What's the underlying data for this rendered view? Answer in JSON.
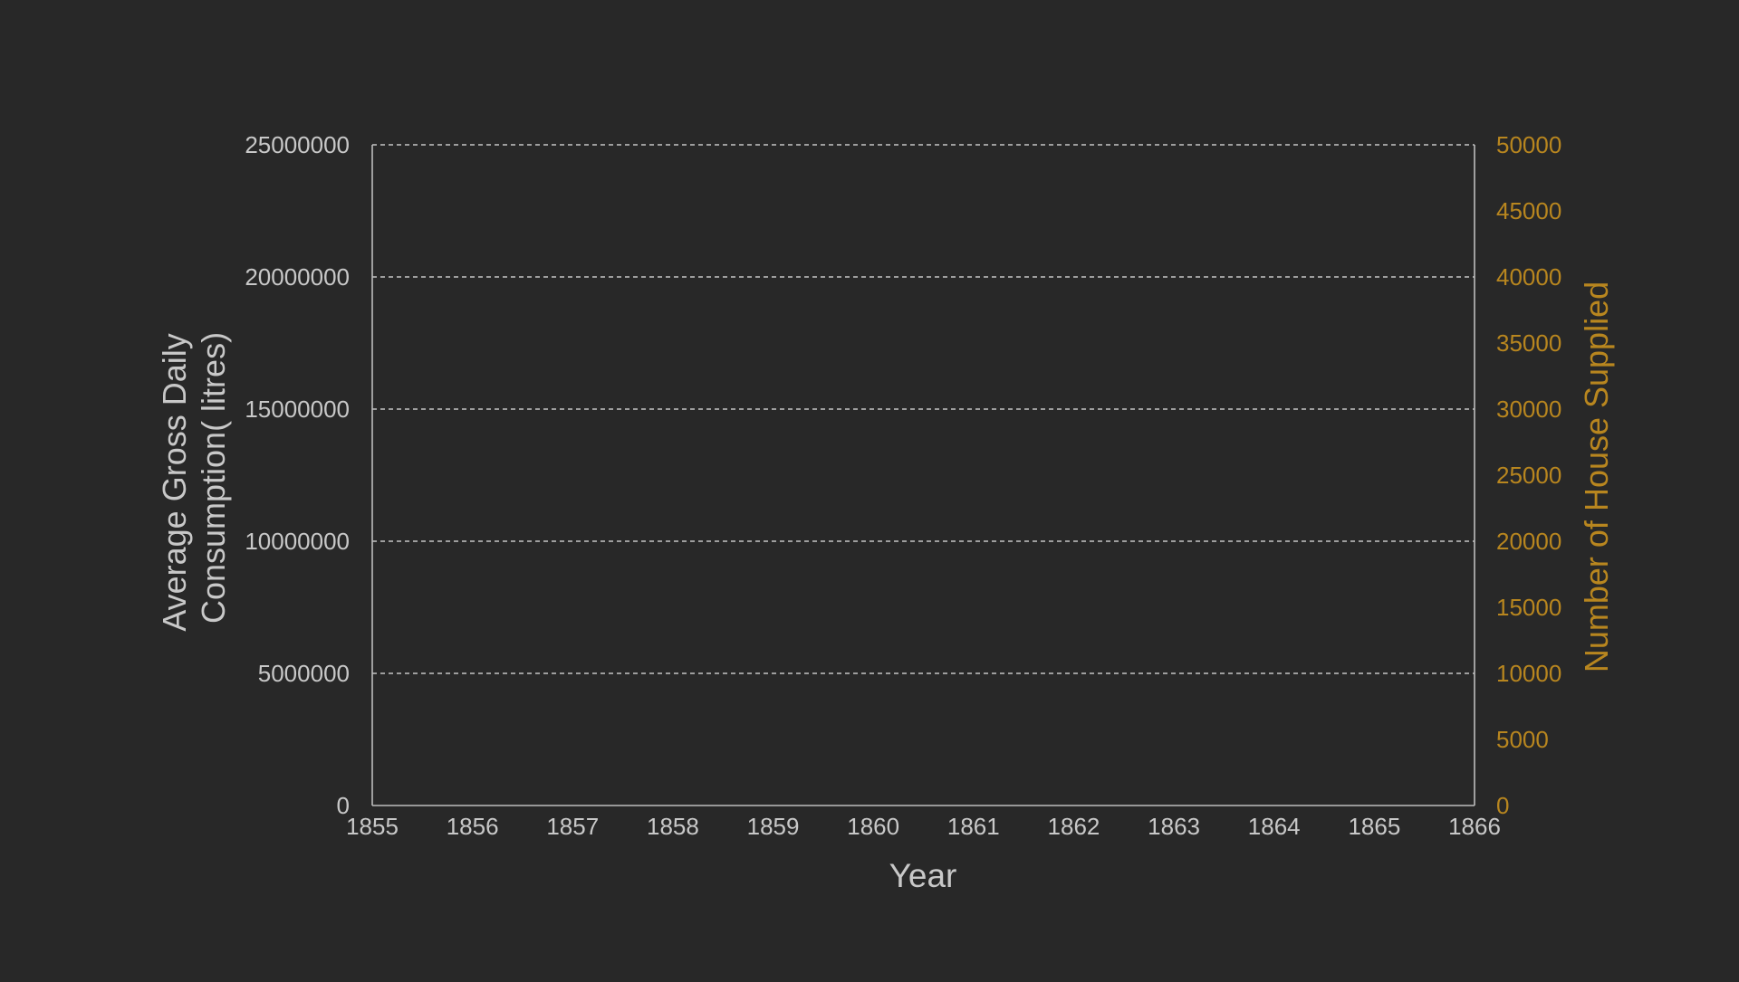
{
  "chart_data": {
    "type": "line",
    "title": "",
    "xlabel": "Year",
    "ylabel_left": "Average Gross Daily Consumption( litres)",
    "ylabel_left_lines": [
      "Average Gross Daily",
      "Consumption( litres)"
    ],
    "ylabel_right": "Number of House Supplied",
    "xlim": [
      1855,
      1866
    ],
    "ylim_left": [
      0,
      25000000
    ],
    "ylim_right": [
      0,
      50000
    ],
    "x_ticks": [
      1855,
      1856,
      1857,
      1858,
      1859,
      1860,
      1861,
      1862,
      1863,
      1864,
      1865,
      1866
    ],
    "x_tick_labels": [
      "1855",
      "1856",
      "1857",
      "1858",
      "1859",
      "1860",
      "1861",
      "1862",
      "1863",
      "1864",
      "1865",
      "1866"
    ],
    "y_left_ticks": [
      0,
      5000000,
      10000000,
      15000000,
      20000000,
      25000000
    ],
    "y_left_tick_labels": [
      "0",
      "5000000",
      "10000000",
      "15000000",
      "20000000",
      "25000000"
    ],
    "y_right_ticks": [
      0,
      5000,
      10000,
      15000,
      20000,
      25000,
      30000,
      35000,
      40000,
      45000,
      50000
    ],
    "y_right_tick_labels": [
      "0",
      "5000",
      "10000",
      "15000",
      "20000",
      "25000",
      "30000",
      "35000",
      "40000",
      "45000",
      "50000"
    ],
    "grid": "horizontal dashed at left-axis ticks",
    "series": [],
    "colors": {
      "background": "#282828",
      "left_axis": "#c8c8c8",
      "right_axis": "#b8861f",
      "grid": "#d8d8d8",
      "frame": "#bdbdbd"
    }
  }
}
